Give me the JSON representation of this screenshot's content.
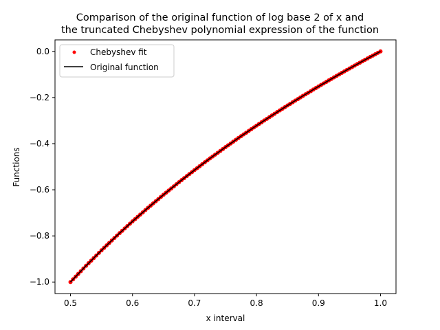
{
  "chart_data": {
    "type": "line",
    "title_lines": [
      "Comparison of the original function of log base 2 of x and",
      "the truncated Chebyshev polynomial expression of the function"
    ],
    "xlabel": "x interval",
    "ylabel": "Functions",
    "xlim": [
      0.475,
      1.025
    ],
    "ylim": [
      -1.05,
      0.05
    ],
    "x_ticks": [
      0.5,
      0.6,
      0.7,
      0.8,
      0.9,
      1.0
    ],
    "x_tick_labels": [
      "0.5",
      "0.6",
      "0.7",
      "0.8",
      "0.9",
      "1.0"
    ],
    "y_ticks": [
      0.0,
      -0.2,
      -0.4,
      -0.6,
      -0.8,
      -1.0
    ],
    "y_tick_labels": [
      "0.0",
      "−0.2",
      "−0.4",
      "−0.6",
      "−0.8",
      "−1.0"
    ],
    "grid": false,
    "legend_position": "top-left",
    "series": [
      {
        "name": "Chebyshev fit",
        "style": "points",
        "color": "#ff0000",
        "x": [
          0.5,
          0.525,
          0.55,
          0.575,
          0.6,
          0.625,
          0.65,
          0.675,
          0.7,
          0.725,
          0.75,
          0.775,
          0.8,
          0.825,
          0.85,
          0.875,
          0.9,
          0.925,
          0.95,
          0.975,
          1.0
        ],
        "y": [
          -1.0,
          -0.9296,
          -0.8625,
          -0.7984,
          -0.737,
          -0.6781,
          -0.6215,
          -0.567,
          -0.5146,
          -0.4639,
          -0.415,
          -0.3677,
          -0.3219,
          -0.2775,
          -0.2345,
          -0.1926,
          -0.152,
          -0.1125,
          -0.074,
          -0.0365,
          0.0
        ]
      },
      {
        "name": "Original function",
        "style": "line",
        "color": "#000000",
        "x": [
          0.5,
          0.525,
          0.55,
          0.575,
          0.6,
          0.625,
          0.65,
          0.675,
          0.7,
          0.725,
          0.75,
          0.775,
          0.8,
          0.825,
          0.85,
          0.875,
          0.9,
          0.925,
          0.95,
          0.975,
          1.0
        ],
        "y": [
          -1.0,
          -0.9296,
          -0.8625,
          -0.7984,
          -0.737,
          -0.6781,
          -0.6215,
          -0.567,
          -0.5146,
          -0.4639,
          -0.415,
          -0.3677,
          -0.3219,
          -0.2775,
          -0.2345,
          -0.1926,
          -0.152,
          -0.1125,
          -0.074,
          -0.0365,
          0.0
        ]
      }
    ]
  }
}
